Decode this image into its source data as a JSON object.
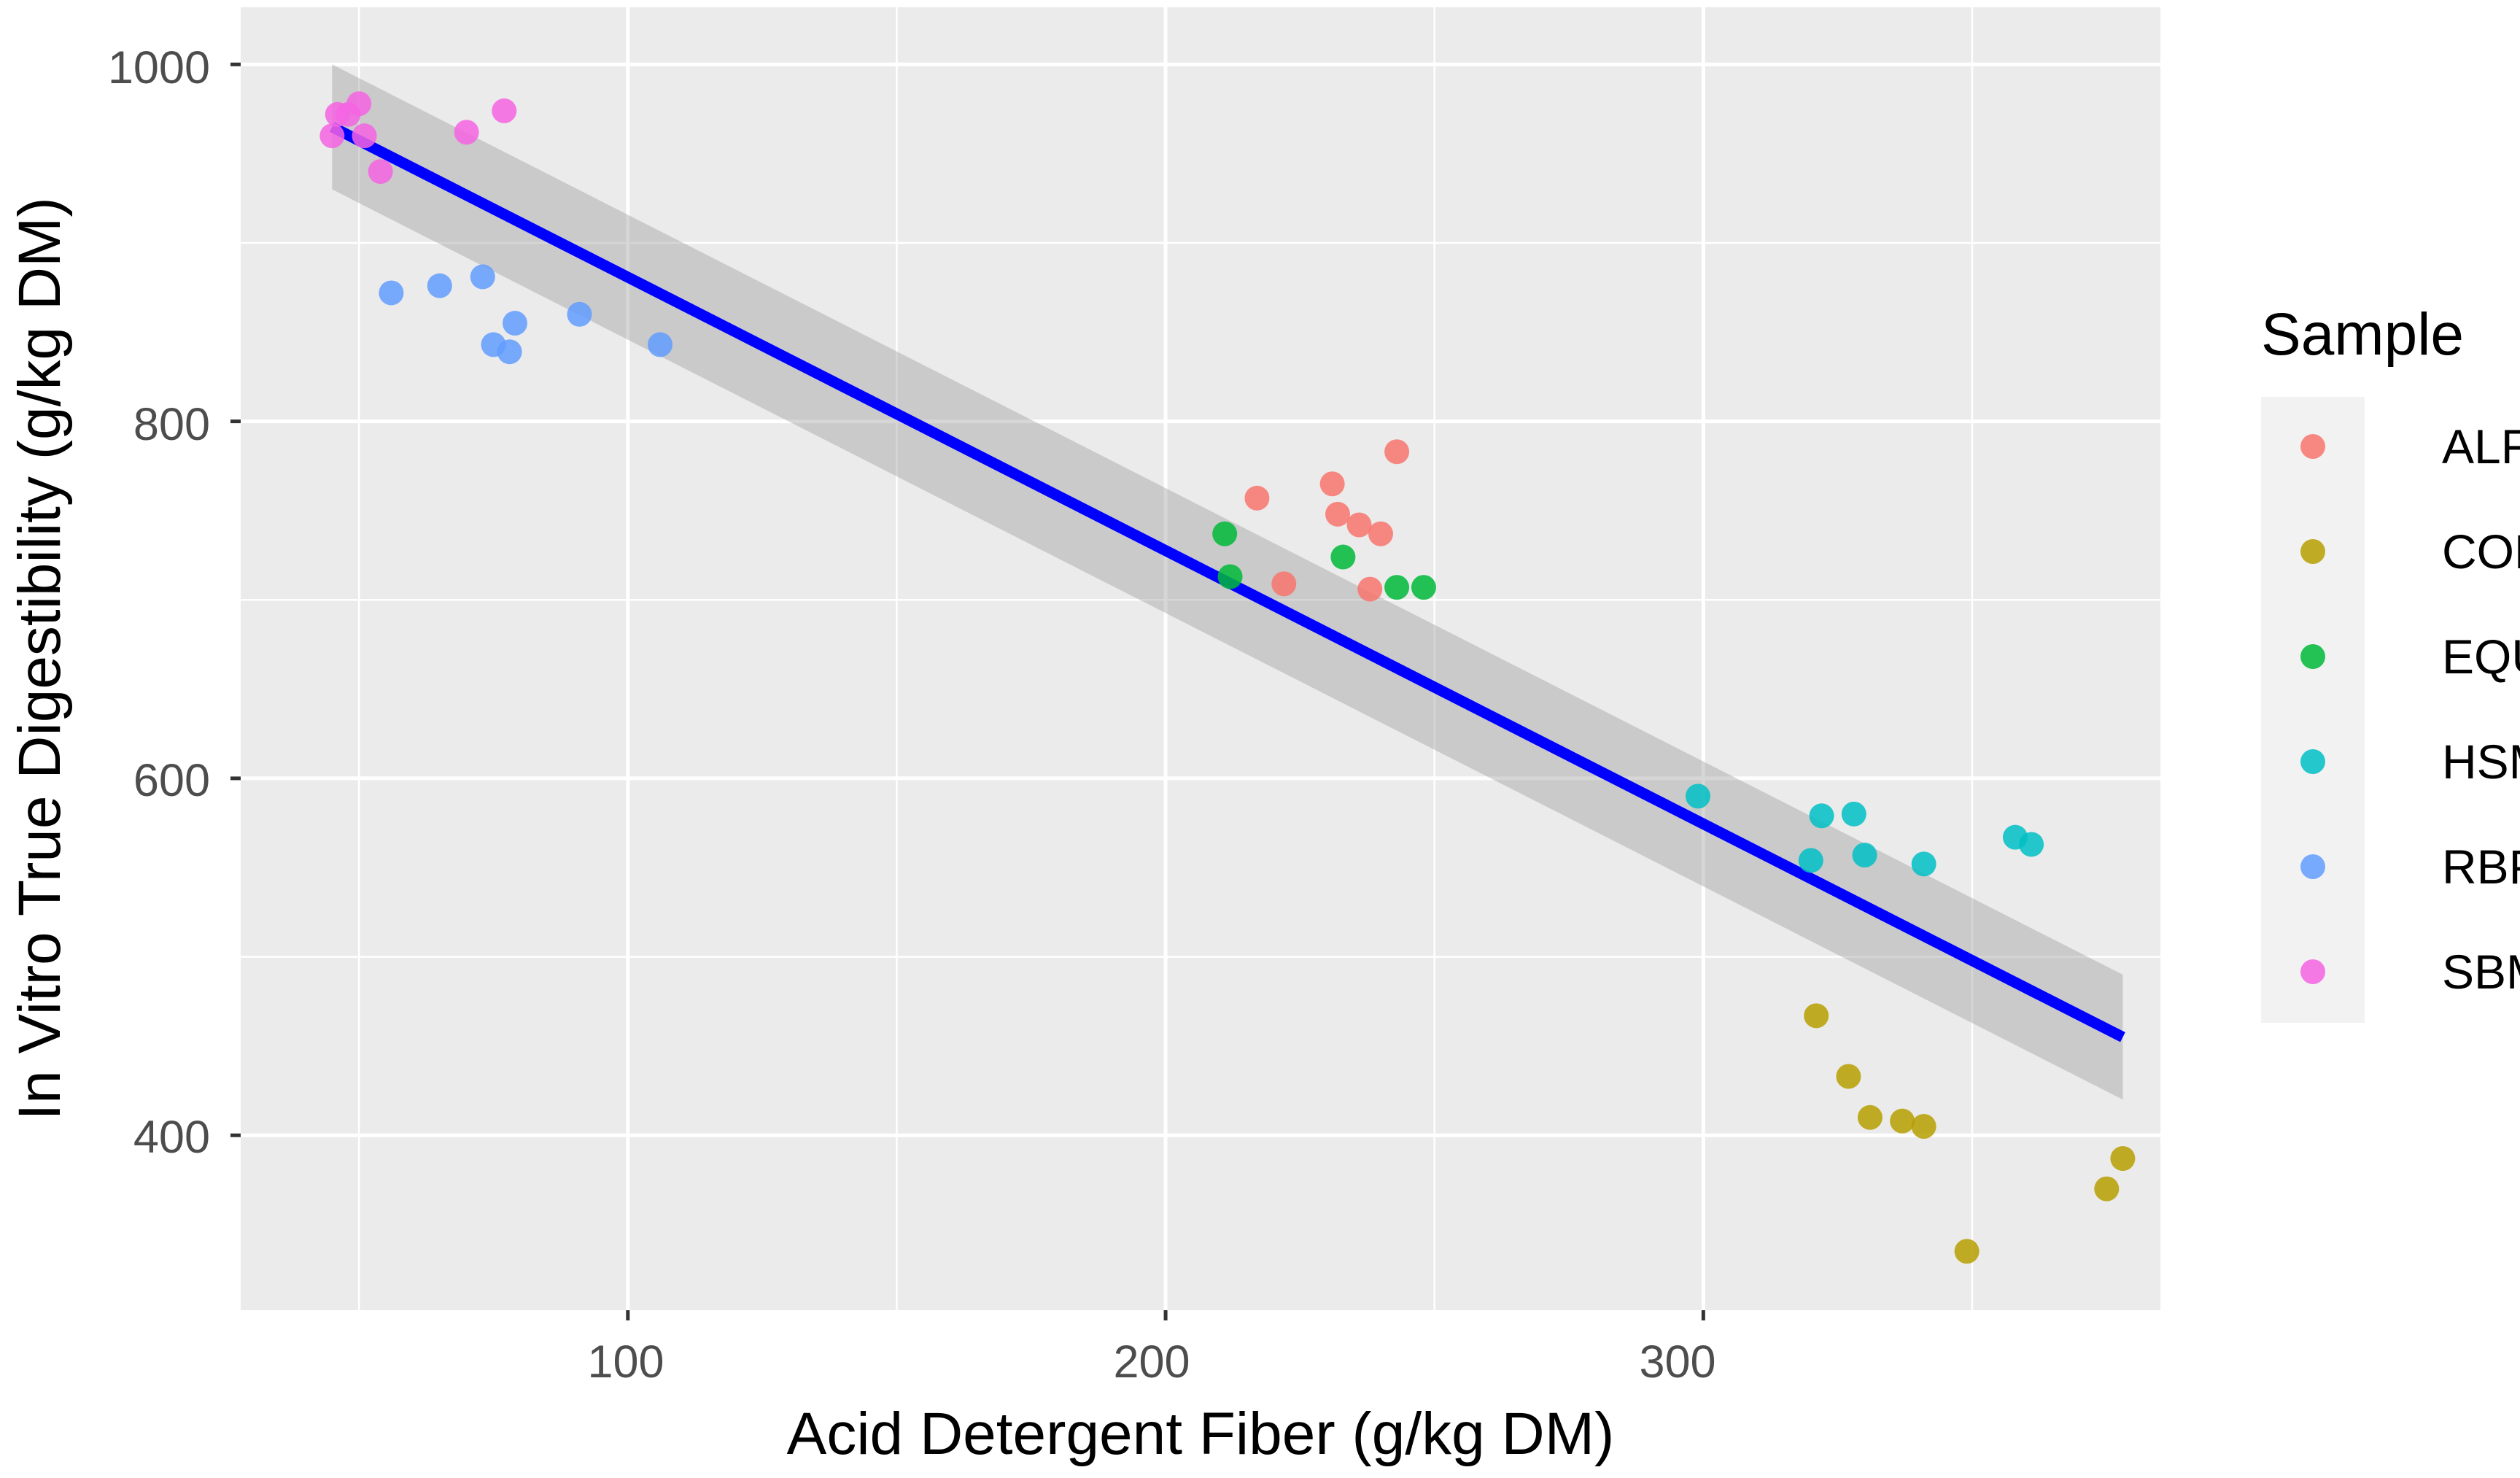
{
  "chart_data": {
    "type": "scatter",
    "xlabel": "Acid Detergent Fiber (g/kg DM)",
    "ylabel": "In Vitro True Digestibility (g/kg DM)",
    "xlim": [
      28,
      385
    ],
    "ylim": [
      302,
      1032
    ],
    "x_ticks": [
      100,
      200,
      300
    ],
    "x_tick_labels": [
      "100",
      "200",
      "300"
    ],
    "y_ticks": [
      400,
      600,
      800,
      1000
    ],
    "y_tick_labels": [
      "400",
      "600",
      "800",
      "1000"
    ],
    "grid": true,
    "legend": {
      "title": "Sample",
      "position": "right"
    },
    "series": [
      {
        "name": "ALF",
        "color": "#F8766D",
        "points": [
          [
            217,
            757
          ],
          [
            222,
            709
          ],
          [
            231,
            765
          ],
          [
            232,
            748
          ],
          [
            236,
            742
          ],
          [
            240,
            737
          ],
          [
            238,
            706
          ],
          [
            243,
            783
          ]
        ]
      },
      {
        "name": "COH",
        "color": "#B79F00",
        "points": [
          [
            321,
            467
          ],
          [
            327,
            433
          ],
          [
            331,
            410
          ],
          [
            337,
            408
          ],
          [
            341,
            405
          ],
          [
            349,
            335
          ],
          [
            375,
            370
          ],
          [
            378,
            387
          ]
        ]
      },
      {
        "name": "EQU",
        "color": "#00BA38",
        "points": [
          [
            211,
            737
          ],
          [
            212,
            713
          ],
          [
            233,
            724
          ],
          [
            243,
            707
          ],
          [
            248,
            707
          ]
        ]
      },
      {
        "name": "HSM",
        "color": "#00BFC4",
        "points": [
          [
            299,
            590
          ],
          [
            320,
            554
          ],
          [
            322,
            579
          ],
          [
            328,
            580
          ],
          [
            330,
            557
          ],
          [
            341,
            552
          ],
          [
            358,
            567
          ],
          [
            361,
            563
          ]
        ]
      },
      {
        "name": "RBP",
        "color": "#619CFF",
        "points": [
          [
            56,
            872
          ],
          [
            65,
            876
          ],
          [
            73,
            881
          ],
          [
            75,
            843
          ],
          [
            78,
            839
          ],
          [
            79,
            855
          ],
          [
            91,
            860
          ],
          [
            106,
            843
          ]
        ]
      },
      {
        "name": "SBM",
        "color": "#F564E3",
        "points": [
          [
            45,
            960
          ],
          [
            46,
            972
          ],
          [
            48,
            972
          ],
          [
            50,
            978
          ],
          [
            51,
            960
          ],
          [
            54,
            940
          ],
          [
            70,
            962
          ],
          [
            77,
            974
          ]
        ]
      }
    ],
    "regression": {
      "color": "#0000FF",
      "x": [
        45,
        378
      ],
      "y": [
        965,
        455
      ],
      "ci_lower": [
        930,
        420
      ],
      "ci_upper": [
        1000,
        490
      ]
    }
  }
}
